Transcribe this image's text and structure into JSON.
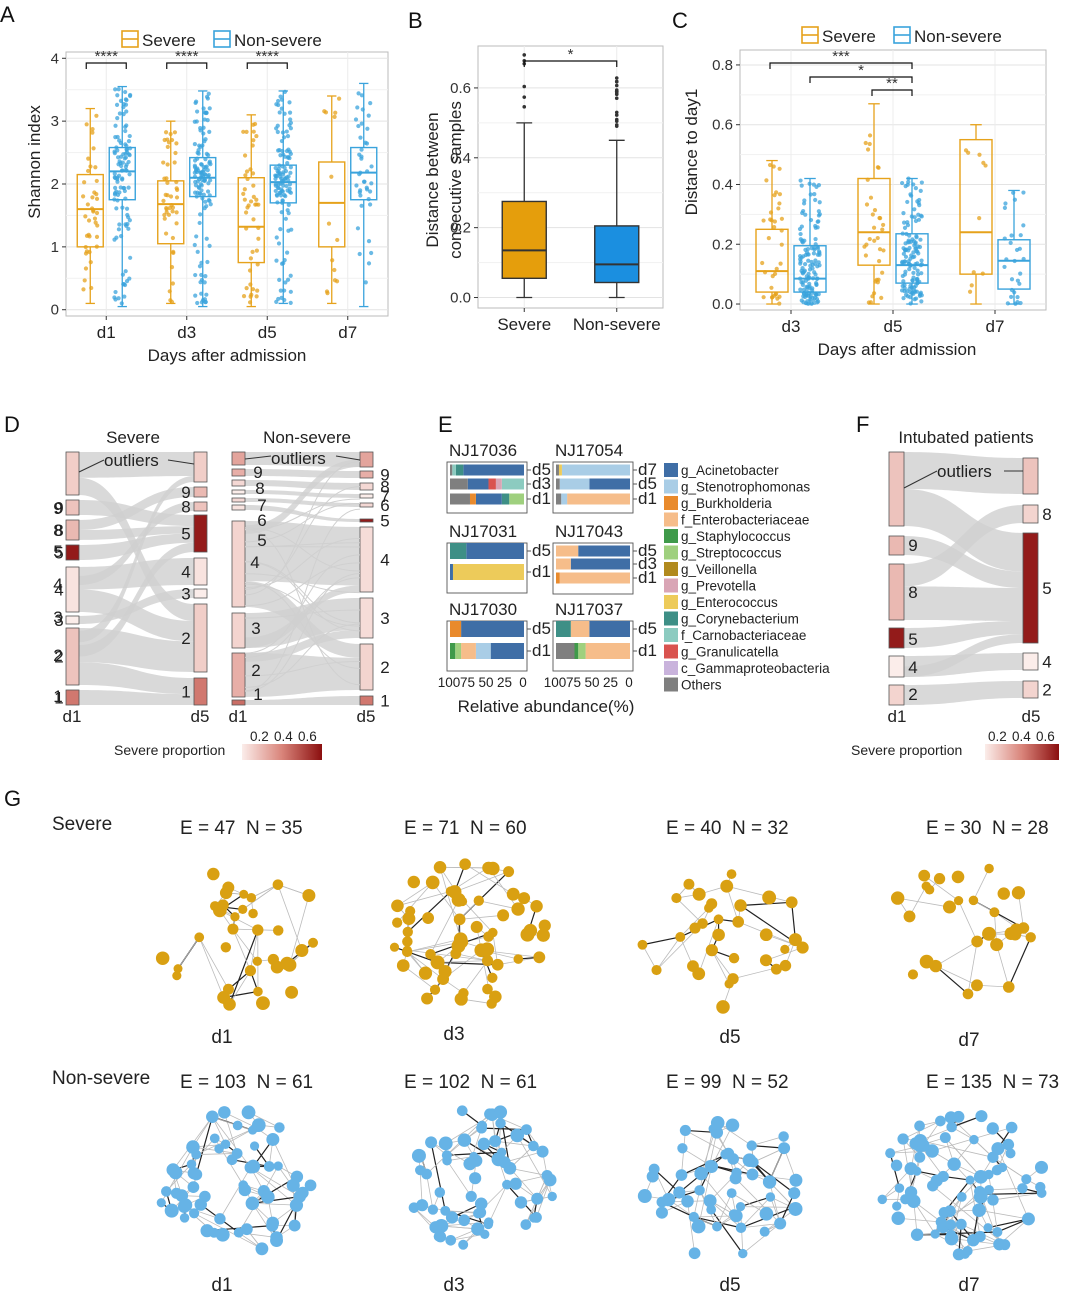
{
  "colors": {
    "severe": "#E6A21B",
    "nonsevere": "#3AA3DC",
    "severe_fill": "#E59E0C",
    "nonsevere_fill": "#1B8FE0",
    "node_severe": "#D9A012",
    "node_nonsevere": "#66B3E6"
  },
  "panel_letters": [
    "A",
    "B",
    "C",
    "D",
    "E",
    "F",
    "G"
  ],
  "legend": {
    "severe": "Severe",
    "nonsevere": "Non-severe"
  },
  "chart_data": [
    {
      "id": "A",
      "type": "box",
      "ylabel": "Shannon index",
      "xlabel": "Days after admission",
      "categories": [
        "d1",
        "d3",
        "d5",
        "d7"
      ],
      "ylim": [
        -0.1,
        4.1
      ],
      "yticks": [
        0,
        1,
        2,
        3,
        4
      ],
      "series": [
        {
          "name": "Severe",
          "boxes": [
            {
              "min": 0.1,
              "q1": 1.0,
              "median": 1.6,
              "q3": 2.15,
              "max": 3.2
            },
            {
              "min": 0.1,
              "q1": 1.05,
              "median": 1.68,
              "q3": 2.05,
              "max": 3.0
            },
            {
              "min": 0.05,
              "q1": 0.75,
              "median": 1.32,
              "q3": 2.1,
              "max": 3.1
            },
            {
              "min": 0.1,
              "q1": 1.0,
              "median": 1.7,
              "q3": 2.35,
              "max": 3.4
            }
          ]
        },
        {
          "name": "Non-severe",
          "boxes": [
            {
              "min": 0.05,
              "q1": 1.75,
              "median": 2.2,
              "q3": 2.58,
              "max": 3.55
            },
            {
              "min": 0.05,
              "q1": 1.8,
              "median": 2.1,
              "q3": 2.42,
              "max": 3.48
            },
            {
              "min": 0.1,
              "q1": 1.7,
              "median": 2.03,
              "q3": 2.3,
              "max": 3.48
            },
            {
              "min": 0.05,
              "q1": 1.75,
              "median": 2.18,
              "q3": 2.58,
              "max": 3.6
            }
          ]
        }
      ],
      "significance": [
        {
          "between": "d1",
          "label": "****"
        },
        {
          "between": "d3",
          "label": "****"
        },
        {
          "between": "d5",
          "label": "****"
        }
      ]
    },
    {
      "id": "B",
      "type": "box",
      "ylabel": "Distance between consecutive samples",
      "categories": [
        "Severe",
        "Non-severe"
      ],
      "ylim": [
        -0.03,
        0.72
      ],
      "yticks": [
        0.0,
        0.2,
        0.4,
        0.6
      ],
      "boxes": [
        {
          "min": 0.0,
          "q1": 0.055,
          "median": 0.135,
          "q3": 0.275,
          "max": 0.5
        },
        {
          "min": 0.0,
          "q1": 0.043,
          "median": 0.095,
          "q3": 0.205,
          "max": 0.45
        }
      ],
      "significance": [
        {
          "label": "*"
        }
      ]
    },
    {
      "id": "C",
      "type": "box",
      "ylabel": "Distance to day1",
      "xlabel": "Days after admission",
      "categories": [
        "d3",
        "d5",
        "d7"
      ],
      "ylim": [
        -0.02,
        0.85
      ],
      "yticks": [
        0.0,
        0.2,
        0.4,
        0.6,
        0.8
      ],
      "series": [
        {
          "name": "Severe",
          "boxes": [
            {
              "min": 0.0,
              "q1": 0.04,
              "median": 0.11,
              "q3": 0.25,
              "max": 0.48
            },
            {
              "min": 0.0,
              "q1": 0.13,
              "median": 0.24,
              "q3": 0.42,
              "max": 0.67
            },
            {
              "min": 0.0,
              "q1": 0.1,
              "median": 0.24,
              "q3": 0.55,
              "max": 0.6
            }
          ]
        },
        {
          "name": "Non-severe",
          "boxes": [
            {
              "min": 0.0,
              "q1": 0.04,
              "median": 0.085,
              "q3": 0.195,
              "max": 0.42
            },
            {
              "min": 0.0,
              "q1": 0.07,
              "median": 0.13,
              "q3": 0.235,
              "max": 0.42
            },
            {
              "min": 0.0,
              "q1": 0.05,
              "median": 0.145,
              "q3": 0.215,
              "max": 0.38
            }
          ]
        }
      ],
      "significance": [
        {
          "label": "***"
        },
        {
          "label": "*"
        },
        {
          "label": "**"
        }
      ]
    },
    {
      "id": "E",
      "type": "bar",
      "stacked": true,
      "xlabel": "Relative abundance(%)",
      "xticks": [
        100,
        75,
        50,
        25,
        0
      ],
      "taxa": [
        "g_Acinetobacter",
        "g_Stenotrophomonas",
        "g_Burkholderia",
        "f_Enterobacteriaceae",
        "g_Staphylococcus",
        "g_Streptococcus",
        "g_Veillonella",
        "g_Prevotella",
        "g_Enterococcus",
        "g_Corynebacterium",
        "f_Carnobacteriaceae",
        "g_Granulicatella",
        "c_Gammaproteobacteria",
        "Others"
      ],
      "taxa_colors": [
        "#3F6EA6",
        "#A9CDE6",
        "#E98A2C",
        "#F6BD8A",
        "#3F9A4A",
        "#9FD07E",
        "#B18A1E",
        "#D9A5B5",
        "#EDCB5A",
        "#3E8F86",
        "#8CCBC0",
        "#D9534F",
        "#C9B3DC",
        "#7F7F7F"
      ],
      "patients": [
        {
          "id": "NJ17036",
          "samples": [
            {
              "day": "d5",
              "values": {
                "g_Acinetobacter": 82,
                "g_Corynebacterium": 10,
                "f_Carnobacteriaceae": 5,
                "Others": 3
              }
            },
            {
              "day": "d3",
              "values": {
                "f_Carnobacteriaceae": 30,
                "g_Prevotella": 8,
                "g_Granulicatella": 10,
                "g_Acinetobacter": 28,
                "Others": 24
              }
            },
            {
              "day": "d1",
              "values": {
                "g_Streptococcus": 20,
                "g_Corynebacterium": 10,
                "g_Acinetobacter": 35,
                "g_Burkholderia": 8,
                "Others": 27
              }
            }
          ]
        },
        {
          "id": "NJ17054",
          "samples": [
            {
              "day": "d7",
              "values": {
                "g_Stenotrophomonas": 92,
                "g_Enterococcus": 4,
                "Others": 4
              }
            },
            {
              "day": "d5",
              "values": {
                "g_Acinetobacter": 55,
                "g_Stenotrophomonas": 40,
                "Others": 5
              }
            },
            {
              "day": "d1",
              "values": {
                "f_Enterobacteriaceae": 85,
                "g_Stenotrophomonas": 8,
                "Others": 7
              }
            }
          ]
        },
        {
          "id": "NJ17031",
          "samples": [
            {
              "day": "d5",
              "values": {
                "g_Acinetobacter": 78,
                "g_Corynebacterium": 22
              }
            },
            {
              "day": "d1",
              "values": {
                "g_Enterococcus": 96,
                "g_Acinetobacter": 4
              }
            }
          ]
        },
        {
          "id": "NJ17043",
          "samples": [
            {
              "day": "d5",
              "values": {
                "g_Acinetobacter": 70,
                "f_Enterobacteriaceae": 30
              }
            },
            {
              "day": "d3",
              "values": {
                "g_Acinetobacter": 80,
                "f_Enterobacteriaceae": 20
              }
            },
            {
              "day": "d1",
              "values": {
                "f_Enterobacteriaceae": 95,
                "g_Burkholderia": 5
              }
            }
          ]
        },
        {
          "id": "NJ17030",
          "samples": [
            {
              "day": "d5",
              "values": {
                "g_Acinetobacter": 85,
                "g_Burkholderia": 15
              }
            },
            {
              "day": "d1",
              "values": {
                "g_Acinetobacter": 45,
                "g_Stenotrophomonas": 20,
                "f_Enterobacteriaceae": 20,
                "g_Streptococcus": 8,
                "g_Staphylococcus": 7
              }
            }
          ]
        },
        {
          "id": "NJ17037",
          "samples": [
            {
              "day": "d5",
              "values": {
                "g_Acinetobacter": 55,
                "f_Enterobacteriaceae": 25,
                "g_Corynebacterium": 20
              }
            },
            {
              "day": "d1",
              "values": {
                "f_Enterobacteriaceae": 60,
                "g_Streptococcus": 10,
                "g_Staphylococcus": 5,
                "Others": 25
              }
            }
          ]
        }
      ]
    }
  ],
  "axes_text": {
    "a_ylabel": "Shannon index",
    "a_xlabel": "Days after admission",
    "b_ylabel1": "Distance between",
    "b_ylabel2": "consecutive samples",
    "c_ylabel": "Distance to day1",
    "c_xlabel": "Days after admission",
    "e_xlabel": "Relative abundance(%)",
    "a_ticks": [
      "0",
      "1",
      "2",
      "3",
      "4"
    ],
    "a_cats": [
      "d1",
      "d3",
      "d5",
      "d7"
    ],
    "b_ticks": [
      "0.0",
      "0.2",
      "0.4",
      "0.6"
    ],
    "b_cats": [
      "Severe",
      "Non-severe"
    ],
    "c_ticks": [
      "0.0",
      "0.2",
      "0.4",
      "0.6",
      "0.8"
    ],
    "c_cats": [
      "d3",
      "d5",
      "d7"
    ],
    "e_ticks": [
      "100",
      "75",
      "50",
      "25",
      "0"
    ],
    "a_sig": [
      "****",
      "****",
      "****"
    ],
    "b_sig": [
      "*"
    ],
    "c_sig": [
      "***",
      "*",
      "**"
    ]
  },
  "sankey": {
    "d_severe_title": "Severe",
    "d_nonsevere_title": "Non-severe",
    "f_title": "Intubated patients",
    "outliers": "outliers",
    "left_day": "d1",
    "right_day": "d5",
    "scale_label": "Severe proportion",
    "scale_ticks": [
      "0.2",
      "0.4",
      "0.6"
    ],
    "d_sev_left": [
      "9",
      "8",
      "5",
      "4",
      "3",
      "2",
      "1"
    ],
    "d_sev_right": [
      "9",
      "8",
      "5",
      "4",
      "3",
      "2",
      "1"
    ],
    "d_non_left": [
      "9",
      "8",
      "7",
      "6",
      "5",
      "4",
      "3",
      "2",
      "1"
    ],
    "d_non_right": [
      "9",
      "8",
      "7",
      "6",
      "5",
      "4",
      "3",
      "2",
      "1"
    ],
    "f_left": [
      "9",
      "8",
      "5",
      "4",
      "2"
    ],
    "f_right": [
      "8",
      "5",
      "4",
      "2"
    ]
  },
  "networks": {
    "row_severe": "Severe",
    "row_nonsevere": "Non-severe",
    "severe": [
      {
        "label": "E = 47  N = 35",
        "day": "d1"
      },
      {
        "label": "E = 71  N = 60",
        "day": "d3"
      },
      {
        "label": "E = 40  N = 32",
        "day": "d5"
      },
      {
        "label": "E = 30  N = 28",
        "day": "d7"
      }
    ],
    "nonsevere": [
      {
        "label": "E = 103  N = 61",
        "day": "d1"
      },
      {
        "label": "E = 102  N = 61",
        "day": "d3"
      },
      {
        "label": "E = 99  N = 52",
        "day": "d5"
      },
      {
        "label": "E = 135  N = 73",
        "day": "d7"
      }
    ]
  }
}
